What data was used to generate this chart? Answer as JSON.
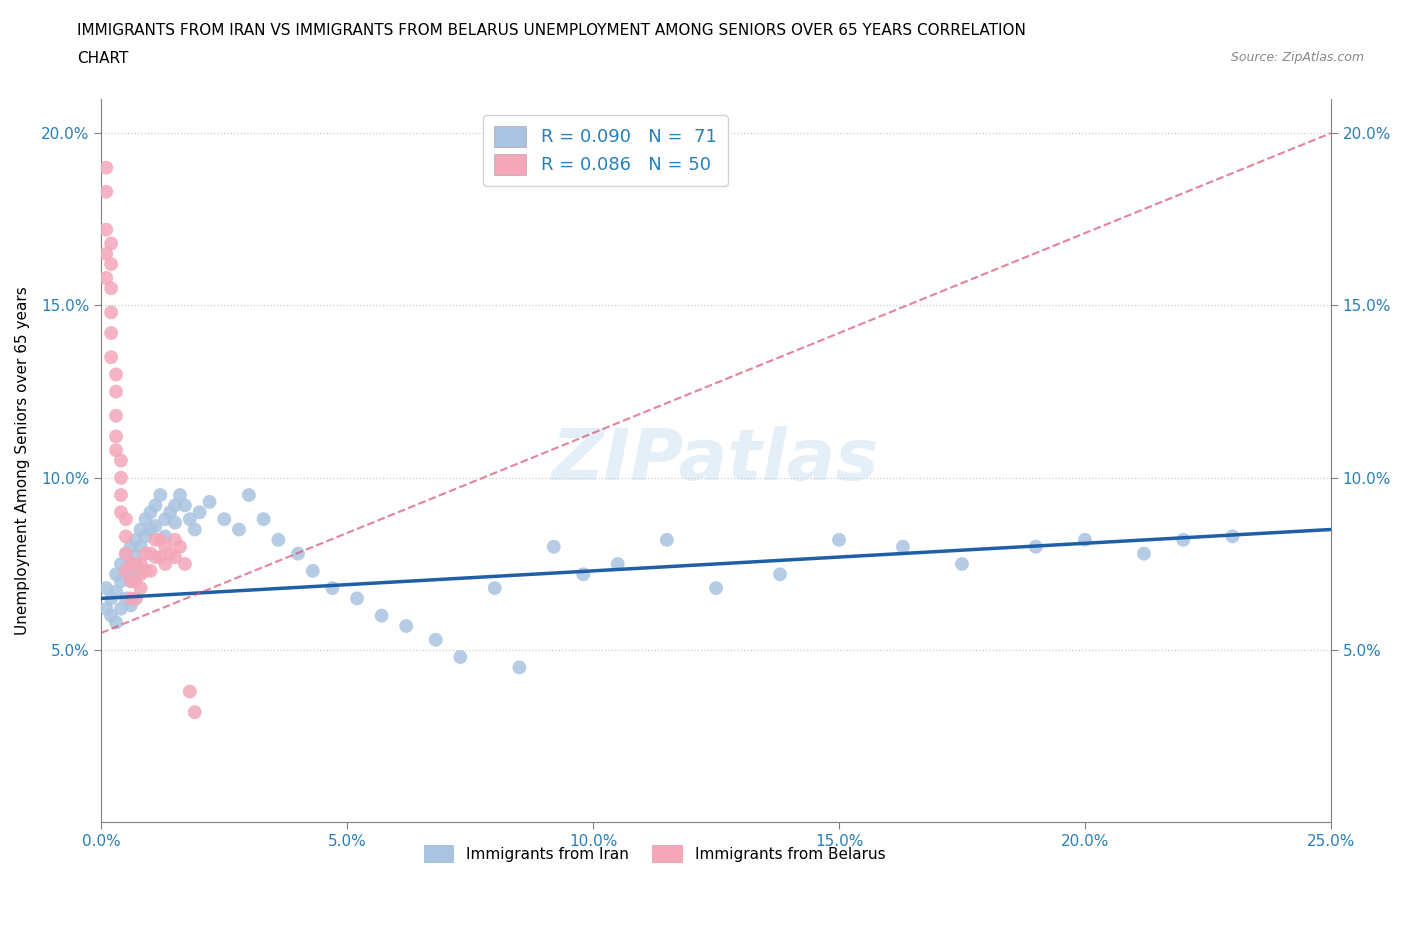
{
  "title_line1": "IMMIGRANTS FROM IRAN VS IMMIGRANTS FROM BELARUS UNEMPLOYMENT AMONG SENIORS OVER 65 YEARS CORRELATION",
  "title_line2": "CHART",
  "source": "Source: ZipAtlas.com",
  "ylabel": "Unemployment Among Seniors over 65 years",
  "xlim": [
    0.0,
    0.25
  ],
  "ylim": [
    0.0,
    0.21
  ],
  "xticks": [
    0.0,
    0.05,
    0.1,
    0.15,
    0.2,
    0.25
  ],
  "yticks": [
    0.05,
    0.1,
    0.15,
    0.2
  ],
  "xtick_labels": [
    "0.0%",
    "5.0%",
    "10.0%",
    "15.0%",
    "20.0%",
    "25.0%"
  ],
  "ytick_labels": [
    "5.0%",
    "10.0%",
    "15.0%",
    "20.0%"
  ],
  "iran_color": "#a8c4e0",
  "iran_line_color": "#1f5fa6",
  "belarus_color": "#f4a7b9",
  "belarus_line_color": "#d94f70",
  "watermark": "ZIPatlas",
  "legend_R_iran": "R = 0.090",
  "legend_N_iran": "N =  71",
  "legend_R_belarus": "R = 0.086",
  "legend_N_belarus": "N = 50",
  "iran_x": [
    0.001,
    0.001,
    0.002,
    0.002,
    0.003,
    0.003,
    0.003,
    0.004,
    0.004,
    0.004,
    0.005,
    0.005,
    0.005,
    0.006,
    0.006,
    0.006,
    0.006,
    0.007,
    0.007,
    0.007,
    0.007,
    0.008,
    0.008,
    0.008,
    0.009,
    0.009,
    0.01,
    0.01,
    0.011,
    0.011,
    0.012,
    0.013,
    0.013,
    0.014,
    0.015,
    0.015,
    0.016,
    0.017,
    0.018,
    0.019,
    0.02,
    0.022,
    0.025,
    0.028,
    0.03,
    0.033,
    0.036,
    0.04,
    0.043,
    0.047,
    0.052,
    0.057,
    0.062,
    0.068,
    0.073,
    0.08,
    0.085,
    0.092,
    0.098,
    0.105,
    0.115,
    0.125,
    0.138,
    0.15,
    0.163,
    0.175,
    0.19,
    0.2,
    0.212,
    0.22,
    0.23
  ],
  "iran_y": [
    0.068,
    0.062,
    0.065,
    0.06,
    0.072,
    0.067,
    0.058,
    0.075,
    0.07,
    0.062,
    0.078,
    0.073,
    0.065,
    0.08,
    0.075,
    0.07,
    0.063,
    0.082,
    0.077,
    0.072,
    0.065,
    0.085,
    0.08,
    0.073,
    0.088,
    0.083,
    0.09,
    0.085,
    0.092,
    0.086,
    0.095,
    0.088,
    0.083,
    0.09,
    0.092,
    0.087,
    0.095,
    0.092,
    0.088,
    0.085,
    0.09,
    0.093,
    0.088,
    0.085,
    0.095,
    0.088,
    0.082,
    0.078,
    0.073,
    0.068,
    0.065,
    0.06,
    0.057,
    0.053,
    0.048,
    0.068,
    0.045,
    0.08,
    0.072,
    0.075,
    0.082,
    0.068,
    0.072,
    0.082,
    0.08,
    0.075,
    0.08,
    0.082,
    0.078,
    0.082,
    0.083
  ],
  "belarus_x": [
    0.001,
    0.001,
    0.001,
    0.001,
    0.001,
    0.002,
    0.002,
    0.002,
    0.002,
    0.002,
    0.002,
    0.003,
    0.003,
    0.003,
    0.003,
    0.003,
    0.004,
    0.004,
    0.004,
    0.004,
    0.005,
    0.005,
    0.005,
    0.005,
    0.006,
    0.006,
    0.006,
    0.007,
    0.007,
    0.007,
    0.008,
    0.008,
    0.008,
    0.009,
    0.009,
    0.01,
    0.01,
    0.011,
    0.011,
    0.012,
    0.012,
    0.013,
    0.013,
    0.014,
    0.015,
    0.015,
    0.016,
    0.017,
    0.018,
    0.019
  ],
  "belarus_y": [
    0.19,
    0.183,
    0.172,
    0.165,
    0.158,
    0.168,
    0.162,
    0.155,
    0.148,
    0.142,
    0.135,
    0.13,
    0.125,
    0.118,
    0.112,
    0.108,
    0.105,
    0.1,
    0.095,
    0.09,
    0.088,
    0.083,
    0.078,
    0.073,
    0.075,
    0.07,
    0.065,
    0.075,
    0.07,
    0.065,
    0.075,
    0.072,
    0.068,
    0.078,
    0.073,
    0.078,
    0.073,
    0.082,
    0.077,
    0.082,
    0.077,
    0.08,
    0.075,
    0.078,
    0.082,
    0.077,
    0.08,
    0.075,
    0.038,
    0.032
  ],
  "iran_trend_x": [
    0.0,
    0.25
  ],
  "iran_trend_y": [
    0.065,
    0.085
  ],
  "belarus_trend_x": [
    0.0,
    0.25
  ],
  "belarus_trend_y": [
    0.055,
    0.2
  ]
}
